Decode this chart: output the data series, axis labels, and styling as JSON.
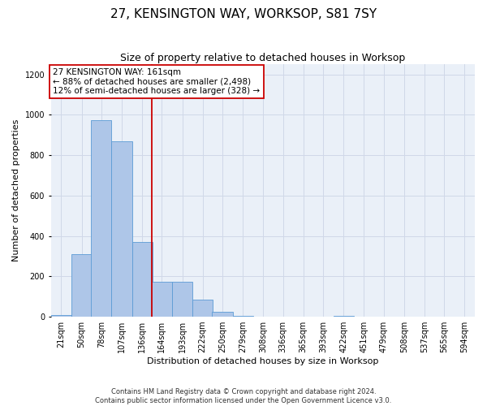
{
  "title": "27, KENSINGTON WAY, WORKSOP, S81 7SY",
  "subtitle": "Size of property relative to detached houses in Worksop",
  "xlabel": "Distribution of detached houses by size in Worksop",
  "ylabel": "Number of detached properties",
  "footnote": "Contains HM Land Registry data © Crown copyright and database right 2024.\nContains public sector information licensed under the Open Government Licence v3.0.",
  "bar_color": "#aec6e8",
  "bar_edge_color": "#5b9bd5",
  "vline_color": "#cc0000",
  "vline_x": 164,
  "annotation_text": "27 KENSINGTON WAY: 161sqm\n← 88% of detached houses are smaller (2,498)\n12% of semi-detached houses are larger (328) →",
  "bin_labels": [
    "21sqm",
    "50sqm",
    "78sqm",
    "107sqm",
    "136sqm",
    "164sqm",
    "193sqm",
    "222sqm",
    "250sqm",
    "279sqm",
    "308sqm",
    "336sqm",
    "365sqm",
    "393sqm",
    "422sqm",
    "451sqm",
    "479sqm",
    "508sqm",
    "537sqm",
    "565sqm",
    "594sqm"
  ],
  "bin_edges": [
    21,
    50,
    78,
    107,
    136,
    164,
    193,
    222,
    250,
    279,
    308,
    336,
    365,
    393,
    422,
    451,
    479,
    508,
    537,
    565,
    594
  ],
  "bar_heights": [
    10,
    310,
    975,
    870,
    370,
    175,
    175,
    85,
    25,
    5,
    0,
    0,
    0,
    0,
    5,
    0,
    0,
    0,
    0,
    0,
    0
  ],
  "ylim": [
    0,
    1250
  ],
  "yticks": [
    0,
    200,
    400,
    600,
    800,
    1000,
    1200
  ],
  "grid_color": "#d0d8e8",
  "bg_color": "#eaf0f8",
  "box_color": "#cc0000",
  "title_fontsize": 11,
  "subtitle_fontsize": 9,
  "label_fontsize": 8,
  "annot_fontsize": 7.5,
  "tick_fontsize": 7
}
